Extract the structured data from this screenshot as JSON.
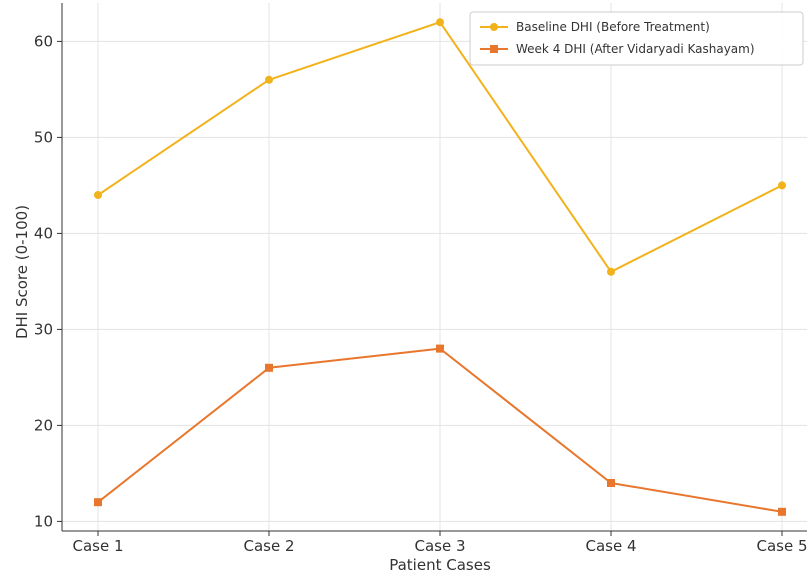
{
  "chart_data": {
    "type": "line",
    "title": "",
    "xlabel": "Patient Cases",
    "ylabel": "DHI Score (0-100)",
    "categories": [
      "Case 1",
      "Case 2",
      "Case 3",
      "Case 4",
      "Case 5"
    ],
    "ylim": [
      9,
      64
    ],
    "yticks": [
      10,
      20,
      30,
      40,
      50,
      60
    ],
    "grid": true,
    "legend_position": "top-right",
    "series": [
      {
        "name": "Baseline DHI (Before Treatment)",
        "values": [
          44,
          56,
          62,
          36,
          45
        ],
        "color": "#F2B21B",
        "marker": "circle"
      },
      {
        "name": "Week 4 DHI (After Vidaryadi Kashayam)",
        "values": [
          12,
          26,
          28,
          14,
          11
        ],
        "color": "#E8762C",
        "marker": "square"
      }
    ]
  }
}
